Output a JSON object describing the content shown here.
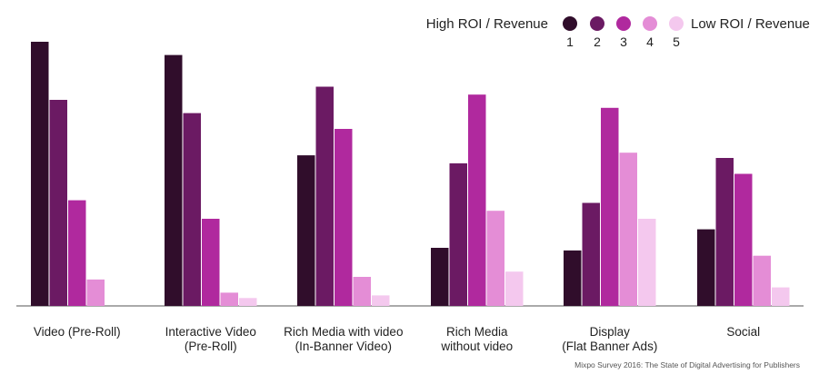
{
  "chart_data": {
    "type": "bar",
    "legend_left": "High ROI / Revenue",
    "legend_right": "Low ROI / Revenue",
    "legend_placement": "top-right",
    "source": "Mixpo Survey 2016: The State of Digital Advertising for Publishers",
    "categories": [
      [
        "Video (Pre-Roll)"
      ],
      [
        "Interactive Video",
        "(Pre-Roll)"
      ],
      [
        "Rich Media with video",
        "(In-Banner Video)"
      ],
      [
        "Rich Media",
        "without video"
      ],
      [
        "Display",
        "(Flat Banner Ads)"
      ],
      [
        "Social"
      ]
    ],
    "ylim": [
      0,
      100
    ],
    "grid": false,
    "series": [
      {
        "name": "1",
        "color": "#300d2b",
        "values": [
          100,
          95,
          57,
          22,
          21,
          29
        ]
      },
      {
        "name": "2",
        "color": "#6b1a63",
        "values": [
          78,
          73,
          83,
          54,
          39,
          56
        ]
      },
      {
        "name": "3",
        "color": "#b0299e",
        "values": [
          40,
          33,
          67,
          80,
          75,
          50
        ]
      },
      {
        "name": "4",
        "color": "#e48dd6",
        "values": [
          10,
          5,
          11,
          36,
          58,
          19
        ]
      },
      {
        "name": "5",
        "color": "#f4c8ee",
        "values": [
          0,
          3,
          4,
          13,
          33,
          7
        ]
      }
    ]
  }
}
